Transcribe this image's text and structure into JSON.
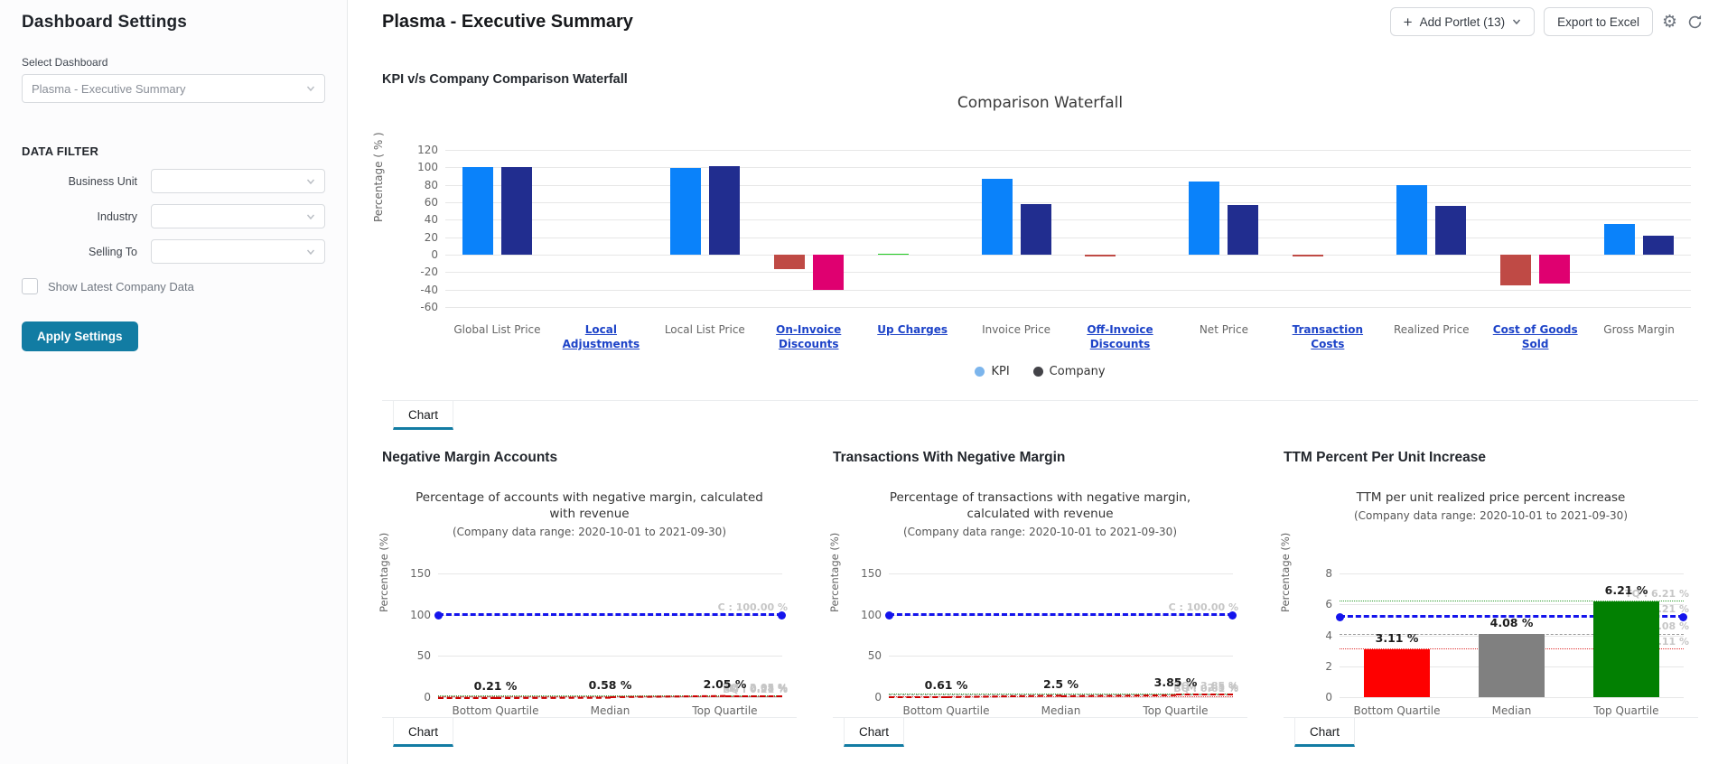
{
  "sidebar": {
    "title": "Dashboard Settings",
    "select_dashboard_label": "Select Dashboard",
    "dashboard_value": "Plasma - Executive Summary",
    "data_filter_label": "DATA FILTER",
    "filters": [
      {
        "label": "Business Unit",
        "value": ""
      },
      {
        "label": "Industry",
        "value": ""
      },
      {
        "label": "Selling To",
        "value": ""
      }
    ],
    "show_latest_label": "Show Latest Company Data",
    "apply_button": "Apply Settings",
    "accent_color": "#127ca3"
  },
  "header": {
    "title": "Plasma - Executive Summary",
    "add_portlet_label": "Add Portlet (13)",
    "export_label": "Export to Excel"
  },
  "waterfall_section": {
    "label": "KPI v/s Company Comparison Waterfall",
    "tab_label": "Chart"
  },
  "chart_data": [
    {
      "id": "comparison-waterfall",
      "type": "bar",
      "title": "Comparison Waterfall",
      "ylabel": "Percentage ( % )",
      "ylim": [
        -60,
        120
      ],
      "yticks": [
        120,
        100,
        80,
        60,
        40,
        20,
        0,
        -20,
        -40,
        -60
      ],
      "grid": true,
      "legend_position": "bottom",
      "legend": [
        {
          "name": "KPI",
          "color": "#7cb5ec"
        },
        {
          "name": "Company",
          "color": "#434348"
        }
      ],
      "categories": [
        {
          "label": "Global List Price",
          "linked": false,
          "kpi": 100,
          "company": 100,
          "kpi_color": "#0a82fa",
          "company_color": "#212d8f"
        },
        {
          "label": "Local Adjustments",
          "linked": true,
          "kpi": 0,
          "company": 0,
          "kpi_color": "#0a82fa",
          "company_color": "#212d8f"
        },
        {
          "label": "Local List Price",
          "linked": false,
          "kpi": 99,
          "company": 101,
          "kpi_color": "#0a82fa",
          "company_color": "#212d8f"
        },
        {
          "label": "On-Invoice Discounts",
          "linked": true,
          "kpi": -17,
          "company": -40,
          "kpi_color": "#bf4a45",
          "company_color": "#df0070"
        },
        {
          "label": "Up Charges",
          "linked": true,
          "kpi": 1.5,
          "company": 0,
          "kpi_color": "#22cc22",
          "company_color": "#22cc22"
        },
        {
          "label": "Invoice Price",
          "linked": false,
          "kpi": 87,
          "company": 58,
          "kpi_color": "#0a82fa",
          "company_color": "#212d8f"
        },
        {
          "label": "Off-Invoice Discounts",
          "linked": true,
          "kpi": -2,
          "company": 0,
          "kpi_color": "#bf4a45",
          "company_color": "#df0070"
        },
        {
          "label": "Net Price",
          "linked": false,
          "kpi": 84,
          "company": 57,
          "kpi_color": "#0a82fa",
          "company_color": "#212d8f"
        },
        {
          "label": "Transaction Costs",
          "linked": true,
          "kpi": -2,
          "company": 0,
          "kpi_color": "#bf4a45",
          "company_color": "#df0070"
        },
        {
          "label": "Realized Price",
          "linked": false,
          "kpi": 80,
          "company": 56,
          "kpi_color": "#0a82fa",
          "company_color": "#212d8f"
        },
        {
          "label": "Cost of Goods Sold",
          "linked": true,
          "kpi": -35,
          "company": -33,
          "kpi_color": "#bf4a45",
          "company_color": "#df0070"
        },
        {
          "label": "Gross Margin",
          "linked": false,
          "kpi": 35,
          "company": 22,
          "kpi_color": "#0a82fa",
          "company_color": "#212d8f"
        }
      ]
    },
    {
      "id": "negative-margin-accounts",
      "type": "line",
      "panel_title": "Negative Margin Accounts",
      "title": "Percentage of accounts with negative margin, calculated with revenue",
      "subtitle": "(Company data range: 2020-10-01 to 2021-09-30)",
      "ylabel": "Percentage (%)",
      "ylim": [
        0,
        150
      ],
      "yticks": [
        150,
        100,
        50,
        0
      ],
      "categories": [
        "Bottom Quartile",
        "Median",
        "Top Quartile"
      ],
      "values": [
        0.21,
        0.58,
        2.05
      ],
      "value_labels": [
        "0.21 %",
        "0.58 %",
        "2.05 %"
      ],
      "series_color": "#cc0000",
      "ref_lines": [
        {
          "name": "company",
          "label": "C : 100.00 %",
          "value": 100,
          "color": "#1414ec",
          "style": "dashed",
          "width": 3,
          "markers": true
        },
        {
          "name": "top-quartile",
          "label": "TQ : 2.05 %",
          "value": 2.05,
          "color": "#2e9e2e",
          "style": "dotted",
          "width": 1
        },
        {
          "name": "median",
          "label": "M : 0.58 %",
          "value": 0.58,
          "color": "#9a9a9a",
          "style": "dashed",
          "width": 1
        },
        {
          "name": "bottom-quartile",
          "label": "BQ : 0.21 %",
          "value": 0.21,
          "color": "#e03030",
          "style": "dotted",
          "width": 1
        }
      ],
      "tab_label": "Chart"
    },
    {
      "id": "transactions-with-negative-margin",
      "type": "line",
      "panel_title": "Transactions With Negative Margin",
      "title": "Percentage of transactions with negative margin, calculated with revenue",
      "subtitle": "(Company data range: 2020-10-01 to 2021-09-30)",
      "ylabel": "Percentage (%)",
      "ylim": [
        0,
        150
      ],
      "yticks": [
        150,
        100,
        50,
        0
      ],
      "categories": [
        "Bottom Quartile",
        "Median",
        "Top Quartile"
      ],
      "values": [
        0.61,
        2.5,
        3.85
      ],
      "value_labels": [
        "0.61 %",
        "2.5 %",
        "3.85 %"
      ],
      "series_color": "#cc0000",
      "ref_lines": [
        {
          "name": "company",
          "label": "C : 100.00 %",
          "value": 100,
          "color": "#1414ec",
          "style": "dashed",
          "width": 3,
          "markers": true
        },
        {
          "name": "top-quartile",
          "label": "TQ : 3.85 %",
          "value": 3.85,
          "color": "#2e9e2e",
          "style": "dotted",
          "width": 1
        },
        {
          "name": "median",
          "label": "M : 2.5 %",
          "value": 2.5,
          "color": "#9a9a9a",
          "style": "dashed",
          "width": 1
        },
        {
          "name": "bottom-quartile",
          "label": "BQ : 0.61 %",
          "value": 0.61,
          "color": "#e03030",
          "style": "dotted",
          "width": 1
        }
      ],
      "tab_label": "Chart"
    },
    {
      "id": "ttm-percent-per-unit-increase",
      "type": "bar",
      "panel_title": "TTM Percent Per Unit Increase",
      "title": "TTM per unit realized price percent increase",
      "subtitle": "(Company data range: 2020-10-01 to 2021-09-30)",
      "ylabel": "Percentage (%)",
      "ylim": [
        0,
        8
      ],
      "yticks": [
        8,
        6,
        4,
        2,
        0
      ],
      "categories": [
        "Bottom Quartile",
        "Median",
        "Top Quartile"
      ],
      "values": [
        3.11,
        4.08,
        6.21
      ],
      "value_labels": [
        "3.11 %",
        "4.08 %",
        "6.21 %"
      ],
      "bar_colors": [
        "#fe0000",
        "#808080",
        "#028002"
      ],
      "ref_lines": [
        {
          "name": "top-quartile",
          "label": "TQ : 6.21 %",
          "value": 6.21,
          "color": "#2e9e2e",
          "style": "dotted",
          "width": 1
        },
        {
          "name": "company",
          "label": "C : 5.21 %",
          "value": 5.21,
          "color": "#1414ec",
          "style": "dashed",
          "width": 3,
          "markers": true
        },
        {
          "name": "median",
          "label": "M : 4.08 %",
          "value": 4.08,
          "color": "#9a9a9a",
          "style": "dashed",
          "width": 1
        },
        {
          "name": "bottom-quartile",
          "label": "BQ : 3.11 %",
          "value": 3.11,
          "color": "#e03030",
          "style": "dotted",
          "width": 1
        }
      ],
      "tab_label": "Chart"
    }
  ]
}
